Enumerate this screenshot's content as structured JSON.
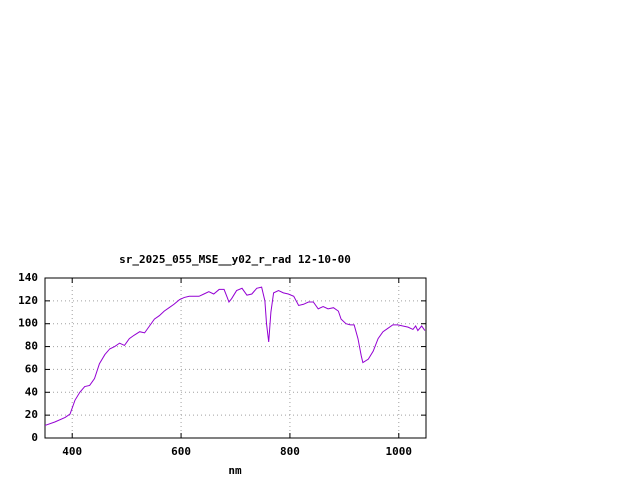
{
  "chart_data": {
    "type": "line",
    "title": "sr_2025_055_MSE__y02_r_rad 12-10-00",
    "x_label": "nm",
    "x": [
      350,
      368,
      387,
      396,
      405,
      414,
      423,
      432,
      441,
      450,
      460,
      469,
      478,
      487,
      496,
      505,
      514,
      524,
      533,
      542,
      551,
      560,
      569,
      578,
      587,
      597,
      606,
      615,
      633,
      642,
      651,
      660,
      670,
      679,
      684,
      688,
      693,
      702,
      712,
      721,
      730,
      739,
      748,
      754,
      757,
      761,
      765,
      770,
      779,
      788,
      797,
      807,
      816,
      825,
      834,
      843,
      852,
      861,
      870,
      880,
      889,
      894,
      903,
      911,
      918,
      925,
      931,
      934,
      944,
      953,
      962,
      971,
      980,
      989,
      998,
      1017,
      1026,
      1031,
      1035,
      1042,
      1048
    ],
    "series": [
      {
        "color": "#9400d3",
        "values": [
          11,
          14,
          18,
          21,
          33,
          40,
          45,
          46,
          52,
          65,
          73,
          78,
          80,
          83,
          81,
          87,
          90,
          93,
          92,
          98,
          104,
          107,
          111,
          114,
          117,
          121,
          123,
          124,
          124,
          126,
          128,
          126,
          130,
          130,
          124,
          119,
          122,
          129,
          131,
          125,
          126,
          131,
          132,
          120,
          100,
          84,
          110,
          127,
          129,
          127,
          126,
          124,
          116,
          117,
          119,
          119,
          113,
          115,
          113,
          114,
          111,
          104,
          100,
          99,
          99,
          87,
          72,
          66,
          69,
          76,
          87,
          93,
          96,
          99,
          99,
          97,
          95,
          98,
          94,
          98,
          94
        ]
      }
    ],
    "xlim": [
      350,
      1050
    ],
    "xticks": [
      400,
      600,
      800,
      1000
    ],
    "ylim": [
      0,
      140
    ],
    "yticks": [
      0,
      20,
      40,
      60,
      80,
      100,
      120,
      140
    ],
    "grid": true
  }
}
